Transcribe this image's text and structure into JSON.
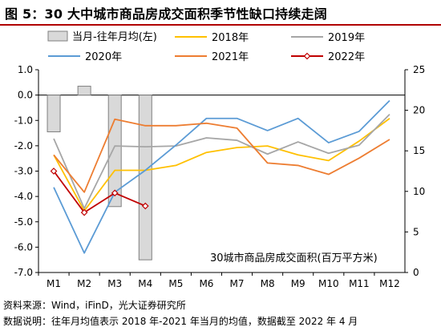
{
  "title": "图 5：30 大中城市商品房成交面积季节性缺口持续走阔",
  "notes": {
    "source": "资料来源：Wind，iFinD，光大证券研究所",
    "explanation": "数据说明：往年月均值表示 2018 年-2021 年当月的均值，数据截至 2022 年 4 月"
  },
  "chart_data": {
    "type": "line",
    "categories": [
      "M1",
      "M2",
      "M3",
      "M4",
      "M5",
      "M6",
      "M7",
      "M8",
      "M9",
      "M10",
      "M11",
      "M12"
    ],
    "annotation": "30城市商品房成交面积(百万平方米)",
    "left_axis": {
      "ylim": [
        -7.0,
        1.0
      ],
      "ticks": [
        "1.0",
        "0.0",
        "-1.0",
        "-2.0",
        "-3.0",
        "-4.0",
        "-5.0",
        "-6.0",
        "-7.0"
      ]
    },
    "right_axis": {
      "ylim": [
        0,
        25
      ],
      "ticks": [
        "25",
        "20",
        "15",
        "10",
        "5",
        "0"
      ]
    },
    "grid": false,
    "legend": "top",
    "bar_series": {
      "name": "当月-往年月均(左)",
      "axis": "left",
      "color": "#d9d9d9",
      "values": [
        -1.45,
        0.35,
        -4.4,
        -6.5,
        null,
        null,
        null,
        null,
        null,
        null,
        null,
        null
      ]
    },
    "series": [
      {
        "name": "2018年",
        "axis": "right",
        "color": "#ffc000",
        "marker": false,
        "values": [
          14.5,
          7.6,
          12.6,
          12.6,
          13.2,
          14.8,
          15.4,
          15.6,
          14.5,
          13.8,
          16.2,
          19.0
        ]
      },
      {
        "name": "2019年",
        "axis": "right",
        "color": "#a6a6a6",
        "marker": false,
        "values": [
          16.5,
          7.9,
          15.6,
          15.5,
          15.6,
          16.6,
          16.3,
          14.6,
          16.1,
          14.7,
          15.7,
          19.5
        ]
      },
      {
        "name": "2020年",
        "axis": "right",
        "color": "#5b9bd5",
        "marker": false,
        "values": [
          10.5,
          2.4,
          9.9,
          12.6,
          15.7,
          19.0,
          19.0,
          17.5,
          19.0,
          16.0,
          17.4,
          21.2
        ]
      },
      {
        "name": "2021年",
        "axis": "right",
        "color": "#ed7d31",
        "marker": false,
        "values": [
          14.5,
          9.9,
          18.9,
          18.1,
          18.1,
          18.4,
          17.8,
          13.5,
          13.2,
          12.1,
          14.1,
          16.4
        ]
      },
      {
        "name": "2022年",
        "axis": "right",
        "color": "#c00000",
        "marker": true,
        "values": [
          12.5,
          7.4,
          9.8,
          8.2,
          null,
          null,
          null,
          null,
          null,
          null,
          null,
          null
        ]
      }
    ]
  }
}
